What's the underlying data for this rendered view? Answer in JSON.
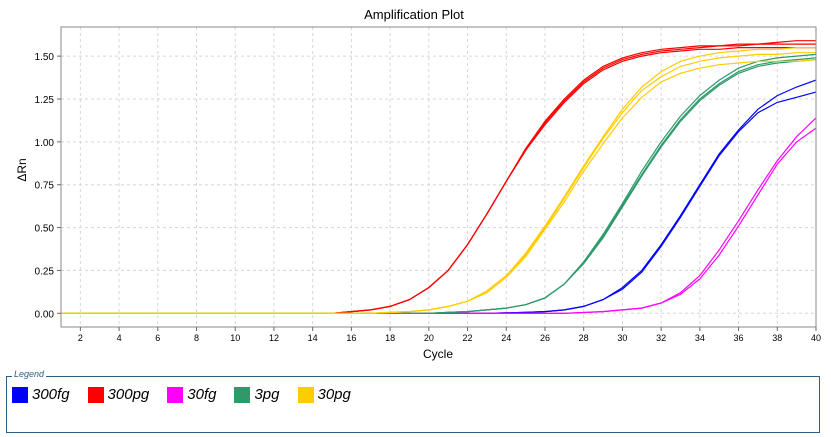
{
  "chart_data": {
    "type": "line",
    "title": "Amplification Plot",
    "xlabel": "Cycle",
    "ylabel": "ΔRn",
    "xlim": [
      1,
      40
    ],
    "ylim": [
      -0.08,
      1.67
    ],
    "x_ticks": [
      2,
      4,
      6,
      8,
      10,
      12,
      14,
      16,
      18,
      20,
      22,
      24,
      26,
      28,
      30,
      32,
      34,
      36,
      38,
      40
    ],
    "y_ticks": [
      0.0,
      0.25,
      0.5,
      0.75,
      1.0,
      1.25,
      1.5
    ],
    "y_tick_labels": [
      "0.00",
      "0.25",
      "0.50",
      "0.75",
      "1.00",
      "1.25",
      "1.50"
    ],
    "grid": true,
    "legend_title": "Legend",
    "legend_position": "bottom",
    "series": [
      {
        "name": "300fg",
        "color": "#0000ff",
        "curves": [
          {
            "x": [
              1,
              3,
              5,
              7,
              9,
              11,
              13,
              15,
              17,
              19,
              21,
              23,
              25,
              26,
              27,
              28,
              29,
              30,
              31,
              32,
              33,
              34,
              35,
              36,
              37,
              38,
              39,
              40
            ],
            "y": [
              0,
              0,
              0,
              0,
              0,
              0,
              0,
              0,
              0,
              0,
              0,
              0,
              0.005,
              0.01,
              0.02,
              0.04,
              0.08,
              0.15,
              0.25,
              0.4,
              0.57,
              0.75,
              0.93,
              1.07,
              1.19,
              1.27,
              1.32,
              1.36
            ]
          },
          {
            "x": [
              1,
              3,
              5,
              7,
              9,
              11,
              13,
              15,
              17,
              19,
              21,
              23,
              25,
              26,
              27,
              28,
              29,
              30,
              31,
              32,
              33,
              34,
              35,
              36,
              37,
              38,
              39,
              40
            ],
            "y": [
              0,
              0,
              0,
              0,
              0,
              0,
              0,
              0,
              0,
              0,
              0,
              0,
              0.005,
              0.01,
              0.02,
              0.04,
              0.08,
              0.14,
              0.24,
              0.39,
              0.56,
              0.74,
              0.92,
              1.06,
              1.17,
              1.23,
              1.26,
              1.29
            ]
          }
        ]
      },
      {
        "name": "300pg",
        "color": "#ff0000",
        "curves": [
          {
            "x": [
              1,
              3,
              5,
              7,
              9,
              11,
              13,
              15,
              16,
              17,
              18,
              19,
              20,
              21,
              22,
              23,
              24,
              25,
              26,
              27,
              28,
              29,
              30,
              31,
              32,
              33,
              34,
              35,
              36,
              37,
              38,
              39,
              40
            ],
            "y": [
              0,
              0,
              0,
              0,
              0,
              0,
              0,
              0,
              0.01,
              0.02,
              0.04,
              0.08,
              0.15,
              0.25,
              0.4,
              0.58,
              0.77,
              0.96,
              1.12,
              1.25,
              1.36,
              1.44,
              1.49,
              1.52,
              1.54,
              1.55,
              1.56,
              1.56,
              1.57,
              1.57,
              1.58,
              1.59,
              1.59
            ]
          },
          {
            "x": [
              1,
              3,
              5,
              7,
              9,
              11,
              13,
              15,
              16,
              17,
              18,
              19,
              20,
              21,
              22,
              23,
              24,
              25,
              26,
              27,
              28,
              29,
              30,
              31,
              32,
              33,
              34,
              35,
              36,
              37,
              38,
              39,
              40
            ],
            "y": [
              0,
              0,
              0,
              0,
              0,
              0,
              0,
              0,
              0.01,
              0.02,
              0.04,
              0.08,
              0.15,
              0.25,
              0.4,
              0.58,
              0.77,
              0.95,
              1.11,
              1.24,
              1.35,
              1.43,
              1.48,
              1.51,
              1.53,
              1.54,
              1.55,
              1.56,
              1.56,
              1.57,
              1.57,
              1.57,
              1.57
            ]
          },
          {
            "x": [
              1,
              3,
              5,
              7,
              9,
              11,
              13,
              15,
              16,
              17,
              18,
              19,
              20,
              21,
              22,
              23,
              24,
              25,
              26,
              27,
              28,
              29,
              30,
              31,
              32,
              33,
              34,
              35,
              36,
              37,
              38,
              39,
              40
            ],
            "y": [
              0,
              0,
              0,
              0,
              0,
              0,
              0,
              0,
              0.01,
              0.02,
              0.04,
              0.08,
              0.15,
              0.25,
              0.4,
              0.58,
              0.77,
              0.95,
              1.1,
              1.23,
              1.34,
              1.42,
              1.47,
              1.5,
              1.52,
              1.53,
              1.54,
              1.54,
              1.55,
              1.55,
              1.55,
              1.55,
              1.55
            ]
          }
        ]
      },
      {
        "name": "30fg",
        "color": "#ff00ff",
        "curves": [
          {
            "x": [
              1,
              3,
              5,
              7,
              9,
              11,
              13,
              15,
              17,
              19,
              21,
              23,
              25,
              27,
              29,
              30,
              31,
              32,
              33,
              34,
              35,
              36,
              37,
              38,
              39,
              40
            ],
            "y": [
              0,
              0,
              0,
              0,
              0,
              0,
              0,
              0,
              0,
              0,
              0,
              0,
              0,
              0,
              0.01,
              0.02,
              0.03,
              0.06,
              0.12,
              0.22,
              0.37,
              0.54,
              0.72,
              0.89,
              1.03,
              1.14
            ]
          },
          {
            "x": [
              1,
              3,
              5,
              7,
              9,
              11,
              13,
              15,
              17,
              19,
              21,
              23,
              25,
              27,
              29,
              30,
              31,
              32,
              33,
              34,
              35,
              36,
              37,
              38,
              39,
              40
            ],
            "y": [
              0,
              0,
              0,
              0,
              0,
              0,
              0,
              0,
              0,
              0,
              0,
              0,
              0,
              0,
              0.01,
              0.02,
              0.03,
              0.06,
              0.11,
              0.2,
              0.34,
              0.51,
              0.69,
              0.87,
              1.0,
              1.08
            ]
          }
        ]
      },
      {
        "name": "3pg",
        "color": "#2e9a6a",
        "curves": [
          {
            "x": [
              1,
              3,
              5,
              7,
              9,
              11,
              13,
              15,
              17,
              19,
              20,
              21,
              22,
              23,
              24,
              25,
              26,
              27,
              28,
              29,
              30,
              31,
              32,
              33,
              34,
              35,
              36,
              37,
              38,
              39,
              40
            ],
            "y": [
              0,
              0,
              0,
              0,
              0,
              0,
              0,
              0,
              0,
              0,
              0,
              0.005,
              0.01,
              0.02,
              0.03,
              0.05,
              0.09,
              0.17,
              0.3,
              0.46,
              0.64,
              0.83,
              1.0,
              1.15,
              1.27,
              1.36,
              1.43,
              1.47,
              1.49,
              1.5,
              1.51
            ]
          },
          {
            "x": [
              1,
              3,
              5,
              7,
              9,
              11,
              13,
              15,
              17,
              19,
              20,
              21,
              22,
              23,
              24,
              25,
              26,
              27,
              28,
              29,
              30,
              31,
              32,
              33,
              34,
              35,
              36,
              37,
              38,
              39,
              40
            ],
            "y": [
              0,
              0,
              0,
              0,
              0,
              0,
              0,
              0,
              0,
              0,
              0,
              0.005,
              0.01,
              0.02,
              0.03,
              0.05,
              0.09,
              0.17,
              0.3,
              0.45,
              0.63,
              0.81,
              0.98,
              1.13,
              1.25,
              1.34,
              1.41,
              1.45,
              1.47,
              1.48,
              1.49
            ]
          },
          {
            "x": [
              1,
              3,
              5,
              7,
              9,
              11,
              13,
              15,
              17,
              19,
              20,
              21,
              22,
              23,
              24,
              25,
              26,
              27,
              28,
              29,
              30,
              31,
              32,
              33,
              34,
              35,
              36,
              37,
              38,
              39,
              40
            ],
            "y": [
              0,
              0,
              0,
              0,
              0,
              0,
              0,
              0,
              0,
              0,
              0,
              0.005,
              0.01,
              0.02,
              0.03,
              0.05,
              0.09,
              0.17,
              0.29,
              0.44,
              0.62,
              0.8,
              0.97,
              1.12,
              1.24,
              1.33,
              1.4,
              1.44,
              1.46,
              1.47,
              1.48
            ]
          }
        ]
      },
      {
        "name": "30pg",
        "color": "#ffcc00",
        "curves": [
          {
            "x": [
              1,
              3,
              5,
              7,
              9,
              11,
              13,
              15,
              17,
              18,
              19,
              20,
              21,
              22,
              23,
              24,
              25,
              26,
              27,
              28,
              29,
              30,
              31,
              32,
              33,
              34,
              35,
              36,
              37,
              38,
              39,
              40
            ],
            "y": [
              0,
              0,
              0,
              0,
              0,
              0,
              0,
              0,
              0,
              0.005,
              0.01,
              0.02,
              0.04,
              0.07,
              0.13,
              0.22,
              0.35,
              0.51,
              0.68,
              0.86,
              1.03,
              1.19,
              1.32,
              1.41,
              1.47,
              1.5,
              1.52,
              1.53,
              1.54,
              1.54,
              1.55,
              1.55
            ]
          },
          {
            "x": [
              1,
              3,
              5,
              7,
              9,
              11,
              13,
              15,
              17,
              18,
              19,
              20,
              21,
              22,
              23,
              24,
              25,
              26,
              27,
              28,
              29,
              30,
              31,
              32,
              33,
              34,
              35,
              36,
              37,
              38,
              39,
              40
            ],
            "y": [
              0,
              0,
              0,
              0,
              0,
              0,
              0,
              0,
              0,
              0.005,
              0.01,
              0.02,
              0.04,
              0.07,
              0.13,
              0.22,
              0.34,
              0.5,
              0.67,
              0.85,
              1.02,
              1.17,
              1.3,
              1.38,
              1.44,
              1.47,
              1.49,
              1.5,
              1.51,
              1.51,
              1.52,
              1.52
            ]
          },
          {
            "x": [
              1,
              3,
              5,
              7,
              9,
              11,
              13,
              15,
              17,
              18,
              19,
              20,
              21,
              22,
              23,
              24,
              25,
              26,
              27,
              28,
              29,
              30,
              31,
              32,
              33,
              34,
              35,
              36,
              37,
              38,
              39,
              40
            ],
            "y": [
              0,
              0,
              0,
              0,
              0,
              0,
              0,
              0,
              0,
              0.005,
              0.01,
              0.02,
              0.04,
              0.07,
              0.12,
              0.21,
              0.33,
              0.49,
              0.65,
              0.83,
              0.99,
              1.14,
              1.26,
              1.35,
              1.4,
              1.43,
              1.45,
              1.46,
              1.47,
              1.47,
              1.47,
              1.48
            ]
          }
        ]
      }
    ]
  }
}
